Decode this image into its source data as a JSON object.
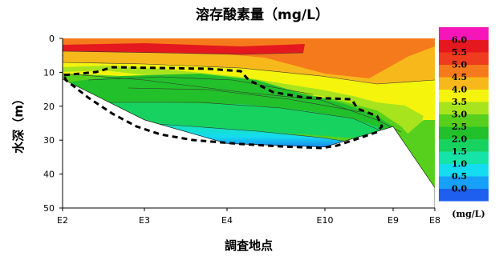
{
  "chart_data": {
    "type": "contour",
    "title": "溶存酸素量（mg/L）",
    "xlabel": "調査地点",
    "ylabel": "水深（m）",
    "x_categories": [
      "E2",
      "E3",
      "E4",
      "E10",
      "E9",
      "E8"
    ],
    "y_ticks": [
      0,
      10,
      20,
      30,
      40,
      50
    ],
    "ylim": [
      50,
      0
    ],
    "colorbar": {
      "unit": "(mg/L)",
      "levels": [
        "0.0",
        "0.5",
        "1.0",
        "1.5",
        "2.0",
        "2.5",
        "3.0",
        "3.5",
        "4.0",
        "4.5",
        "5.0",
        "5.5",
        "6.0"
      ],
      "colors": [
        "#1e5ff0",
        "#17a0f7",
        "#14dcf0",
        "#16e3a6",
        "#18d25f",
        "#22c02a",
        "#56d01c",
        "#a8e41d",
        "#f4f40c",
        "#f7b81b",
        "#f57a1b",
        "#ef3c1e",
        "#e4181e",
        "#f515b8"
      ]
    },
    "annotation": "dashed outline of low-oxygen water mass (roughly 10–32 m between E2 and E9)",
    "bottom_depth_m": [
      12,
      24,
      31,
      32,
      26,
      44
    ]
  }
}
